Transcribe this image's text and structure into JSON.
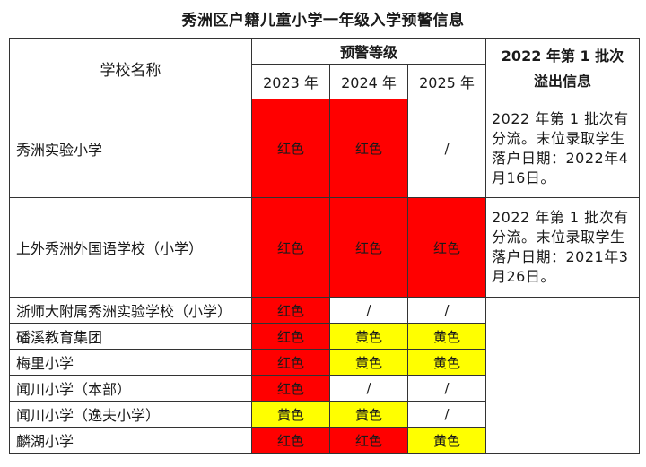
{
  "title": "秀洲区户籍儿童小学一年级入学预警信息",
  "header": {
    "school_name": "学校名称",
    "warning_level": "预警等级",
    "years": [
      "2023 年",
      "2024 年",
      "2025 年"
    ],
    "spillover_line1": "2022 年第 1 批次",
    "spillover_line2": "溢出信息"
  },
  "level_colors": {
    "红色": "#ff0000",
    "黄色": "#ffff00",
    "/": "#ffffff"
  },
  "rows": [
    {
      "name": "秀洲实验小学",
      "levels": [
        "红色",
        "红色",
        "/"
      ],
      "note": "2022 年第 1 批次有分流。末位录取学生落户日期：2022年4月16日。"
    },
    {
      "name": "上外秀洲外国语学校（小学）",
      "levels": [
        "红色",
        "红色",
        "红色"
      ],
      "note": "2022 年第 1 批次有分流。末位录取学生落户日期：2021年3月26日。"
    },
    {
      "name": "浙师大附属秀洲实验学校（小学）",
      "levels": [
        "红色",
        "/",
        "/"
      ]
    },
    {
      "name": "磻溪教育集团",
      "levels": [
        "红色",
        "黄色",
        "黄色"
      ]
    },
    {
      "name": "梅里小学",
      "levels": [
        "红色",
        "黄色",
        "黄色"
      ]
    },
    {
      "name": "闻川小学（本部）",
      "levels": [
        "红色",
        "/",
        "/"
      ]
    },
    {
      "name": "闻川小学（逸夫小学）",
      "levels": [
        "黄色",
        "黄色",
        "/"
      ]
    },
    {
      "name": "麟湖小学",
      "levels": [
        "红色",
        "红色",
        "黄色"
      ]
    }
  ]
}
